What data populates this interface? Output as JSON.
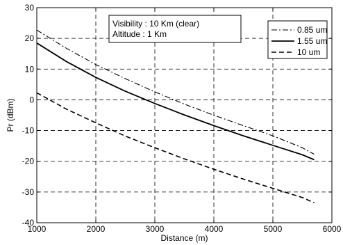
{
  "chart_data": {
    "type": "line",
    "title": "",
    "xlabel": "Distance (m)",
    "ylabel": "Pr (dBm)",
    "xlim": [
      1000,
      6000
    ],
    "ylim": [
      -40,
      30
    ],
    "xticks": [
      1000,
      2000,
      3000,
      4000,
      5000,
      6000
    ],
    "yticks": [
      -40,
      -30,
      -20,
      -10,
      0,
      10,
      20,
      30
    ],
    "xtick_labels": [
      "1000",
      "2000",
      "3000",
      "4000",
      "5000",
      "6000"
    ],
    "ytick_labels": [
      "-40",
      "-30",
      "-20",
      "-10",
      "0",
      "10",
      "20",
      "30"
    ],
    "grid": true,
    "grid_style": "dashed",
    "legend_position": "top-right",
    "annotation": {
      "line1": "Visibility : 10 Km (clear)",
      "line2": "Altitude : 1 Km"
    },
    "series": [
      {
        "name": "0.85 um",
        "style": "dashdot",
        "x": [
          1000,
          1500,
          2000,
          2500,
          3000,
          3500,
          4000,
          4500,
          5000,
          5500,
          5700
        ],
        "values": [
          22.7,
          16.8,
          11.5,
          6.9,
          2.6,
          -1.4,
          -5.0,
          -8.4,
          -11.7,
          -15.6,
          -17.7
        ]
      },
      {
        "name": "1.55 um",
        "style": "solid",
        "x": [
          1000,
          1500,
          2000,
          2500,
          3000,
          3500,
          4000,
          4500,
          5000,
          5500,
          5700
        ],
        "values": [
          18.5,
          12.5,
          7.3,
          2.8,
          -1.2,
          -4.9,
          -8.4,
          -11.7,
          -14.8,
          -17.9,
          -19.5
        ]
      },
      {
        "name": "10 um",
        "style": "dashed",
        "x": [
          1000,
          1500,
          2000,
          2500,
          3000,
          3500,
          4000,
          4500,
          5000,
          5500,
          5700
        ],
        "values": [
          2.3,
          -3.0,
          -7.5,
          -11.8,
          -15.6,
          -19.2,
          -22.6,
          -25.8,
          -28.8,
          -31.8,
          -33.5
        ]
      }
    ]
  },
  "colors": {
    "line": "#000000",
    "grid": "#000000",
    "background": "#ffffff"
  }
}
